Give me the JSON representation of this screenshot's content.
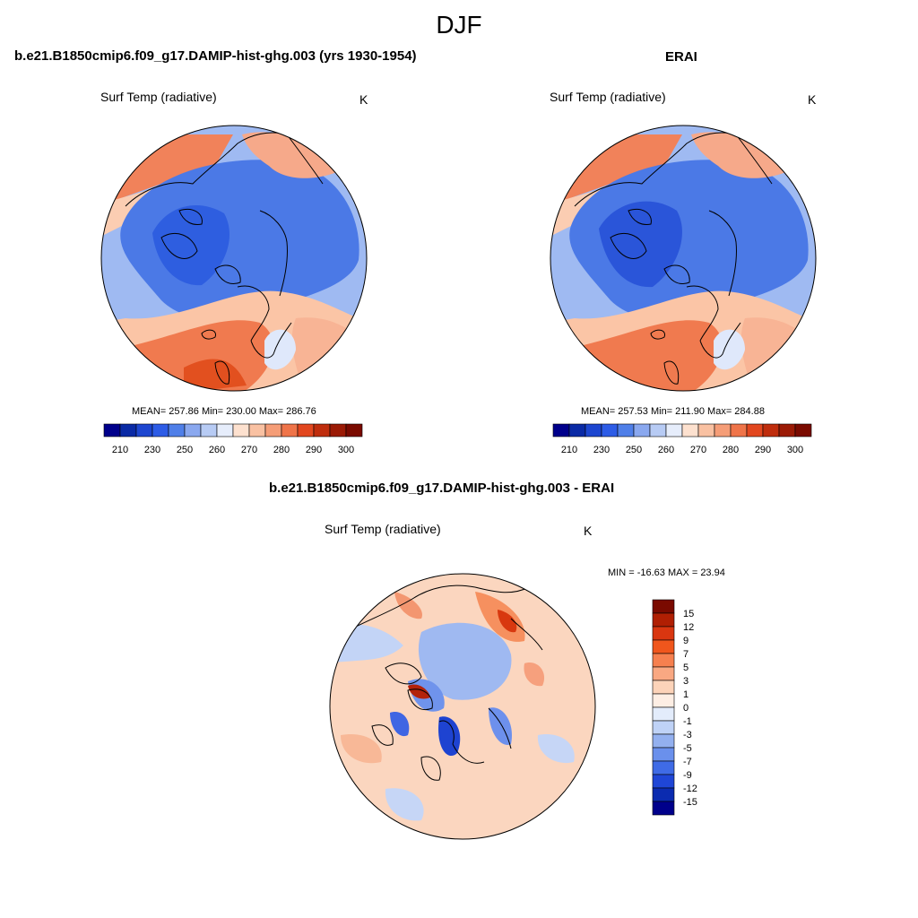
{
  "main_title": "DJF",
  "panels": [
    {
      "title": "b.e21.B1850cmip6.f09_g17.DAMIP-hist-ghg.003 (yrs 1930-1954)",
      "variable": "Surf Temp (radiative)",
      "units": "K",
      "stats": "MEAN= 257.86  Min= 230.00  Max= 286.76"
    },
    {
      "title": "ERAI",
      "variable": "Surf Temp (radiative)",
      "units": "K",
      "stats": "MEAN= 257.53  Min= 211.90  Max= 284.88"
    },
    {
      "title": "b.e21.B1850cmip6.f09_g17.DAMIP-hist-ghg.003 - ERAI",
      "variable": "Surf Temp (radiative)",
      "units": "K",
      "stats": "MIN = -16.63 MAX =  23.94"
    }
  ],
  "colorbar_abs": {
    "tick_labels": [
      "210",
      "230",
      "250",
      "260",
      "270",
      "280",
      "290",
      "300"
    ],
    "colors": [
      "#00008b",
      "#0a2aa5",
      "#1d46d0",
      "#2d5ce6",
      "#4f7fe8",
      "#8aa8ef",
      "#b7cbf4",
      "#e6edfb",
      "#fde1cf",
      "#f9c1a2",
      "#f59d77",
      "#ef7449",
      "#e2471f",
      "#bf2d0d",
      "#9b1a05",
      "#7a0a00"
    ]
  },
  "colorbar_diff": {
    "tick_labels": [
      "15",
      "12",
      "9",
      "7",
      "5",
      "3",
      "1",
      "0",
      "-1",
      "-3",
      "-5",
      "-7",
      "-9",
      "-12",
      "-15"
    ],
    "colors": [
      "#7a0a00",
      "#b01f03",
      "#d93610",
      "#f0561c",
      "#f6804f",
      "#f9a882",
      "#fcd3b9",
      "#fdeee4",
      "#e3ecfb",
      "#bfd2f6",
      "#93b0ef",
      "#6a90ec",
      "#3f6be6",
      "#1f46d6",
      "#0b2bb0",
      "#00008b"
    ]
  }
}
